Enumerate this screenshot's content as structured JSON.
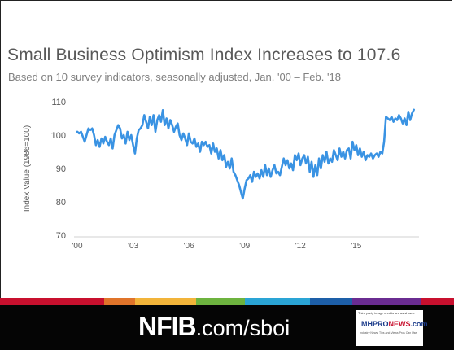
{
  "slide": {
    "title": "Small Business Optimism Index Increases to 107.6",
    "subtitle": "Based on 10 survey indicators, seasonally adjusted,  Jan. '00 – Feb. '18"
  },
  "footer": {
    "brand_bold": "NFIB",
    "brand_rest": ".com/sboi",
    "credit_note": "Third party image credits are as shown.",
    "credit_logo_left": "MHPRO",
    "credit_logo_right": "NEWS",
    "credit_logo_suffix": ".com",
    "credit_tagline": "Industry News, Tips and Views Pros Can Use",
    "stripe_colors": [
      "#c8102e",
      "#e0742a",
      "#f2b43a",
      "#6db33f",
      "#2aa4d5",
      "#1d5fa8",
      "#6a2c91",
      "#c8102e"
    ]
  },
  "chart_data": {
    "type": "line",
    "title": "Small Business Optimism Index Increases to 107.6",
    "xlabel": "",
    "ylabel": "Index Value (1986=100)",
    "ylim": [
      70,
      110
    ],
    "yticks": [
      70,
      80,
      90,
      100,
      110
    ],
    "xlim": [
      2000,
      2018.2
    ],
    "xticks": [
      {
        "x": 2000,
        "label": "'00"
      },
      {
        "x": 2003,
        "label": "'03"
      },
      {
        "x": 2006,
        "label": "'06"
      },
      {
        "x": 2009,
        "label": "'09"
      },
      {
        "x": 2012,
        "label": "'12"
      },
      {
        "x": 2015,
        "label": "'15"
      }
    ],
    "grid": false,
    "color": "#3a93e3",
    "series": [
      {
        "x": [
          2000.0,
          2000.1,
          2000.2,
          2000.3,
          2000.4,
          2000.5,
          2000.6,
          2000.7,
          2000.8,
          2000.9,
          2001.0,
          2001.1,
          2001.2,
          2001.3,
          2001.4,
          2001.5,
          2001.6,
          2001.7,
          2001.8,
          2001.9,
          2002.0,
          2002.1,
          2002.2,
          2002.3,
          2002.4,
          2002.5,
          2002.6,
          2002.7,
          2002.8,
          2002.9,
          2003.0,
          2003.1,
          2003.2,
          2003.3,
          2003.4,
          2003.5,
          2003.6,
          2003.7,
          2003.8,
          2003.9,
          2004.0,
          2004.1,
          2004.2,
          2004.3,
          2004.4,
          2004.5,
          2004.6,
          2004.7,
          2004.8,
          2004.9,
          2005.0,
          2005.1,
          2005.2,
          2005.3,
          2005.4,
          2005.5,
          2005.6,
          2005.7,
          2005.8,
          2005.9,
          2006.0,
          2006.1,
          2006.2,
          2006.3,
          2006.4,
          2006.5,
          2006.6,
          2006.7,
          2006.8,
          2006.9,
          2007.0,
          2007.1,
          2007.2,
          2007.3,
          2007.4,
          2007.5,
          2007.6,
          2007.7,
          2007.8,
          2007.9,
          2008.0,
          2008.1,
          2008.2,
          2008.3,
          2008.4,
          2008.5,
          2008.6,
          2008.7,
          2008.8,
          2008.9,
          2009.0,
          2009.1,
          2009.2,
          2009.3,
          2009.4,
          2009.5,
          2009.6,
          2009.7,
          2009.8,
          2009.9,
          2010.0,
          2010.1,
          2010.2,
          2010.3,
          2010.4,
          2010.5,
          2010.6,
          2010.7,
          2010.8,
          2010.9,
          2011.0,
          2011.1,
          2011.2,
          2011.3,
          2011.4,
          2011.5,
          2011.6,
          2011.7,
          2011.8,
          2011.9,
          2012.0,
          2012.1,
          2012.2,
          2012.3,
          2012.4,
          2012.5,
          2012.6,
          2012.7,
          2012.8,
          2012.9,
          2013.0,
          2013.1,
          2013.2,
          2013.3,
          2013.4,
          2013.5,
          2013.6,
          2013.7,
          2013.8,
          2013.9,
          2014.0,
          2014.1,
          2014.2,
          2014.3,
          2014.4,
          2014.5,
          2014.6,
          2014.7,
          2014.8,
          2014.9,
          2015.0,
          2015.1,
          2015.2,
          2015.3,
          2015.4,
          2015.5,
          2015.6,
          2015.7,
          2015.8,
          2015.9,
          2016.0,
          2016.1,
          2016.2,
          2016.3,
          2016.4,
          2016.5,
          2016.6,
          2016.7,
          2016.8,
          2016.9,
          2017.0,
          2017.1,
          2017.2,
          2017.3,
          2017.4,
          2017.5,
          2017.6,
          2017.7,
          2017.8,
          2017.9,
          2018.0,
          2018.1
        ],
        "values": [
          101,
          100.5,
          101,
          99.5,
          98,
          100,
          102,
          101.5,
          102,
          100,
          97,
          98.5,
          96.5,
          99,
          97.5,
          99.5,
          98,
          97,
          99,
          96,
          100,
          101.5,
          103,
          102,
          99,
          100,
          97.5,
          101,
          98.5,
          100,
          97,
          94.5,
          99,
          101.5,
          102,
          103,
          106,
          104,
          102,
          105.5,
          103,
          106,
          101,
          104.5,
          106,
          104,
          107.5,
          103,
          105,
          102,
          104.5,
          103,
          101,
          102.5,
          103.5,
          100,
          98.5,
          100.5,
          99,
          97,
          100.5,
          98,
          97.5,
          99,
          96.5,
          97.5,
          95,
          98,
          97,
          98,
          96.5,
          97,
          94.5,
          97.5,
          95,
          96,
          93,
          95.5,
          92.5,
          94,
          90.5,
          92,
          90,
          93,
          89,
          88,
          86.5,
          85,
          83,
          81,
          84,
          86.5,
          87,
          88,
          86,
          89,
          87.5,
          88.5,
          87,
          89.5,
          87.5,
          91,
          88,
          90,
          87.5,
          89.5,
          91,
          88.5,
          89,
          88,
          90.5,
          93,
          91,
          92.5,
          90,
          91.5,
          89.5,
          94,
          92.5,
          94.5,
          91,
          93,
          94,
          91.5,
          93.5,
          89,
          92,
          87.5,
          91,
          88,
          93,
          90,
          94,
          92,
          95,
          91.5,
          93,
          92,
          95.5,
          94,
          92.5,
          96,
          93.5,
          95,
          93,
          95.5,
          96,
          93,
          98,
          95.5,
          97,
          94,
          96,
          93.5,
          95,
          92.5,
          94,
          93.5,
          94.5,
          93,
          94,
          94.5,
          93.5,
          95,
          94.5,
          98,
          105.5,
          105,
          104.5,
          105.5,
          104,
          105,
          104.5,
          106,
          105,
          103.5,
          105,
          103,
          107,
          104.5,
          106.5,
          107.6
        ]
      }
    ]
  }
}
